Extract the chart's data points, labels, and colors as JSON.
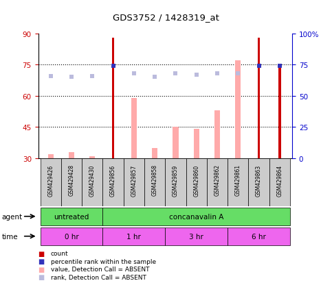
{
  "title": "GDS3752 / 1428319_at",
  "samples": [
    "GSM429426",
    "GSM429428",
    "GSM429430",
    "GSM429856",
    "GSM429857",
    "GSM429858",
    "GSM429859",
    "GSM429860",
    "GSM429862",
    "GSM429861",
    "GSM429863",
    "GSM429864"
  ],
  "count_values": [
    30,
    30,
    30,
    88,
    30,
    30,
    30,
    30,
    30,
    30,
    88,
    75
  ],
  "value_absent": [
    32,
    33,
    31,
    null,
    59,
    35,
    45,
    44,
    53,
    77,
    null,
    null
  ],
  "rank_absent": [
    66,
    65,
    66,
    null,
    68,
    65,
    68,
    67,
    68,
    68,
    null,
    null
  ],
  "percentile_dark": [
    null,
    null,
    null,
    74,
    null,
    null,
    null,
    null,
    null,
    null,
    74,
    74
  ],
  "ylim_left": [
    30,
    90
  ],
  "ylim_right": [
    0,
    100
  ],
  "yticks_left": [
    30,
    45,
    60,
    75,
    90
  ],
  "yticks_right": [
    0,
    25,
    50,
    75,
    100
  ],
  "yticklabels_right": [
    "0",
    "25",
    "50",
    "75",
    "100%"
  ],
  "agent_groups": [
    {
      "label": "untreated",
      "start": 0,
      "end": 3
    },
    {
      "label": "concanavalin A",
      "start": 3,
      "end": 12
    }
  ],
  "time_groups": [
    {
      "label": "0 hr",
      "start": 0,
      "end": 3
    },
    {
      "label": "1 hr",
      "start": 3,
      "end": 6
    },
    {
      "label": "3 hr",
      "start": 6,
      "end": 9
    },
    {
      "label": "6 hr",
      "start": 9,
      "end": 12
    }
  ],
  "dark_red": "#cc0000",
  "dark_blue": "#3333bb",
  "light_pink": "#ffaaaa",
  "light_blue": "#bbbbdd",
  "agent_color": "#66dd66",
  "time_color": "#ee66ee",
  "sample_box_color": "#cccccc",
  "bg_color": "#ffffff",
  "left_axis_color": "#cc0000",
  "right_axis_color": "#0000cc"
}
